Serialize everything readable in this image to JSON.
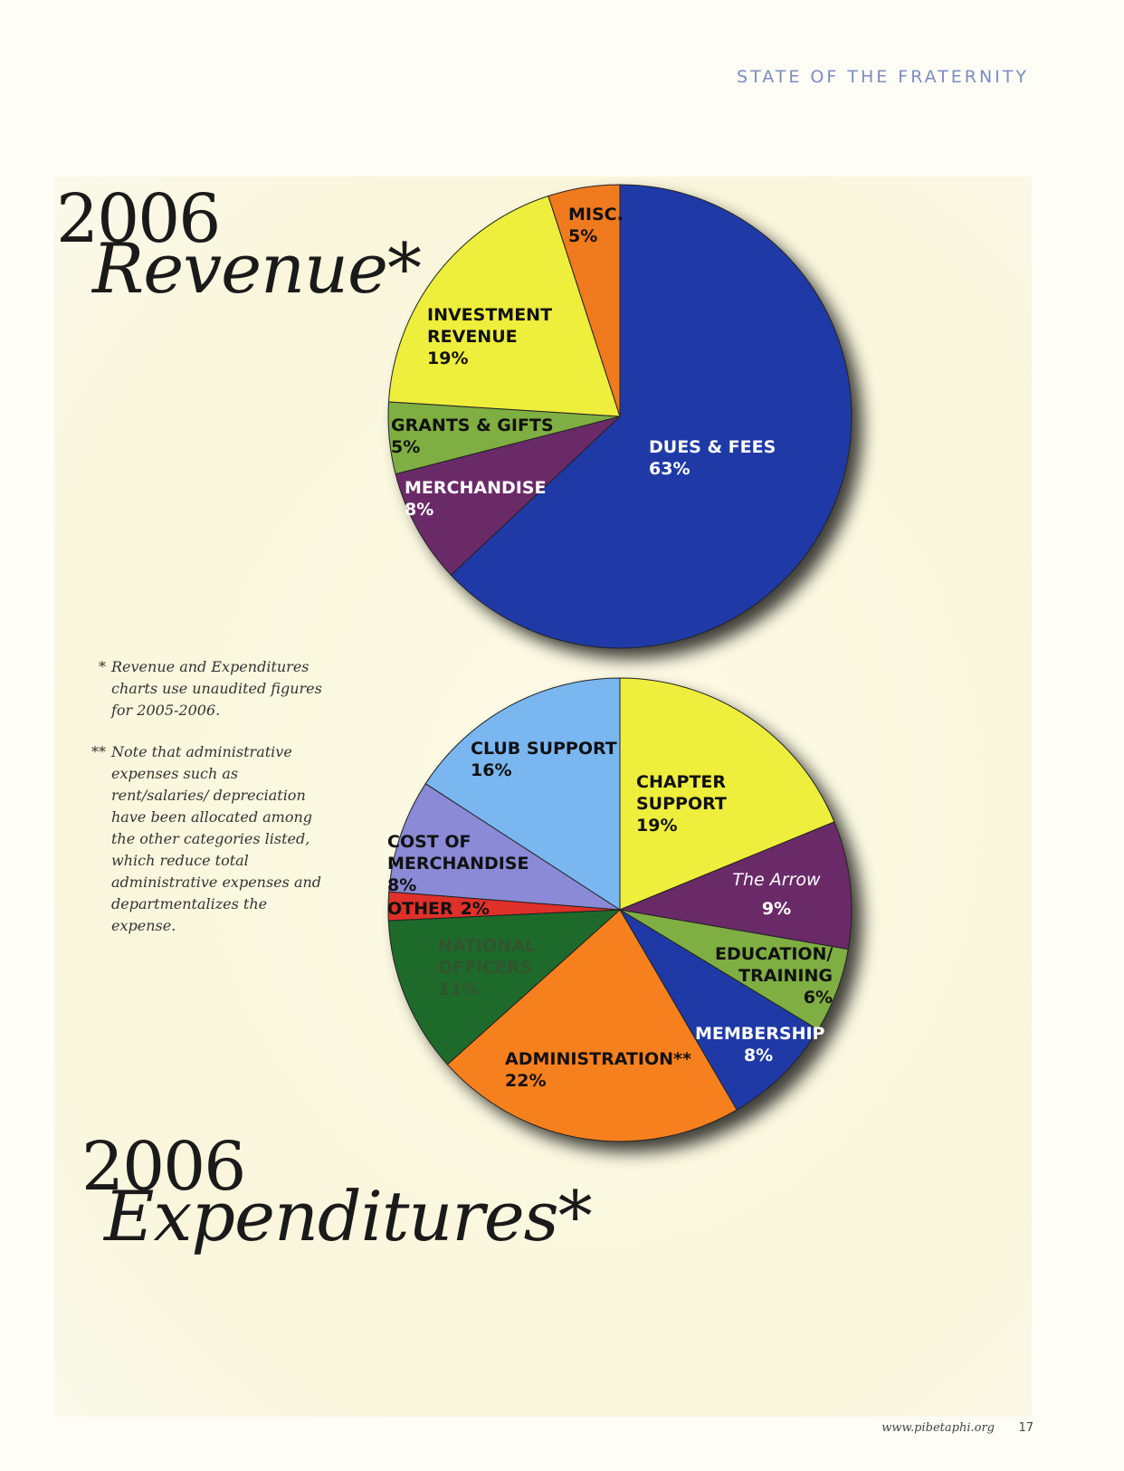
{
  "header": {
    "section": "STATE OF THE FRATERNITY"
  },
  "chart_data": [
    {
      "type": "pie",
      "title": "2006",
      "subtitle": "Revenue*",
      "categories": [
        "DUES & FEES",
        "MERCHANDISE",
        "GRANTS & GIFTS",
        "INVESTMENT REVENUE",
        "MISC."
      ],
      "values": [
        63,
        8,
        5,
        19,
        5
      ],
      "value_labels": [
        "63%",
        "8%",
        "5%",
        "19%",
        "5%"
      ],
      "colors": [
        "#1f3aa6",
        "#6a2a68",
        "#7fae42",
        "#eeee3c",
        "#f07a1e"
      ]
    },
    {
      "type": "pie",
      "title": "2006",
      "subtitle": "Expenditures*",
      "categories": [
        "CHAPTER SUPPORT",
        "The Arrow",
        "EDUCATION/ TRAINING",
        "MEMBERSHIP",
        "ADMINISTRATION**",
        "NATIONAL OFFICERS",
        "OTHER",
        "COST OF MERCHANDISE",
        "CLUB SUPPORT"
      ],
      "values": [
        19,
        9,
        6,
        8,
        22,
        11,
        2,
        8,
        16
      ],
      "value_labels": [
        "19%",
        "9%",
        "6%",
        "8%",
        "22%",
        "11%",
        "2%",
        "8%",
        "16%"
      ],
      "colors": [
        "#eeee3c",
        "#6a2a68",
        "#7fae42",
        "#1f3aa6",
        "#f7801e",
        "#1d6a2a",
        "#e0302a",
        "#8a8ad6",
        "#7ab6f0"
      ]
    }
  ],
  "notes": [
    {
      "marker": "*",
      "text": "Revenue and Expenditures charts use unaudited figures for 2005-2006."
    },
    {
      "marker": "**",
      "text": "Note that administrative expenses such as rent/salaries/ depreciation have been allocated among the other categories listed, which reduce total administrative expenses and departmentalizes the expense."
    }
  ],
  "footer": {
    "url": "www.pibetaphi.org",
    "page": "17"
  }
}
